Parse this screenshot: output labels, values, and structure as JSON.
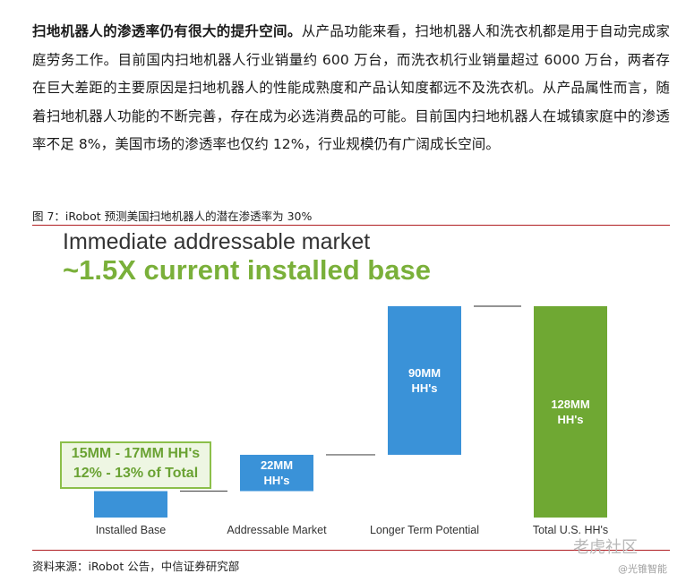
{
  "paragraph": {
    "lead": "扫地机器人的渗透率仍有很大的提升空间。",
    "body": "从产品功能来看，扫地机器人和洗衣机都是用于自动完成家庭劳务工作。目前国内扫地机器人行业销量约 600 万台，而洗衣机行业销量超过 6000 万台，两者存在巨大差距的主要原因是扫地机器人的性能成熟度和产品认知度都远不及洗衣机。从产品属性而言，随着扫地机器人功能的不断完善，存在成为必选消费品的可能。目前国内扫地机器人在城镇家庭中的渗透率不足 8%，美国市场的渗透率也仅约 12%，行业规模仍有广阔成长空间。"
  },
  "figure_caption": "图 7：iRobot 预测美国扫地机器人的潜在渗透率为 30%",
  "chart_data": {
    "type": "waterfall",
    "title": "Immediate addressable market",
    "subtitle": "~1.5X current installed base",
    "unit": "MM HH's",
    "categories": [
      "Installed Base",
      "Addressable Market",
      "Longer Term Potential",
      "Total U.S. HH's"
    ],
    "bars": [
      {
        "label": "Installed Base",
        "base": 0,
        "value": 16,
        "value_label": "",
        "color": "#3a92d8"
      },
      {
        "label": "Addressable Market",
        "base": 16,
        "value": 22,
        "value_label": "22MM\nHH's",
        "color": "#3a92d8"
      },
      {
        "label": "Longer Term Potential",
        "base": 38,
        "value": 90,
        "value_label": "90MM\nHH's",
        "color": "#3a92d8"
      },
      {
        "label": "Total U.S. HH's",
        "base": 0,
        "value": 128,
        "value_label": "128MM\nHH's",
        "color": "#6fa833"
      }
    ],
    "ylim": [
      0,
      128
    ],
    "grid": false,
    "callout": {
      "line1": "15MM - 17MM HH's",
      "line2": "12% - 13% of Total"
    }
  },
  "source": "资料来源：iRobot 公告，中信证券研究部",
  "watermark": {
    "brand": "老虎社区",
    "handle": "@光锥智能"
  }
}
